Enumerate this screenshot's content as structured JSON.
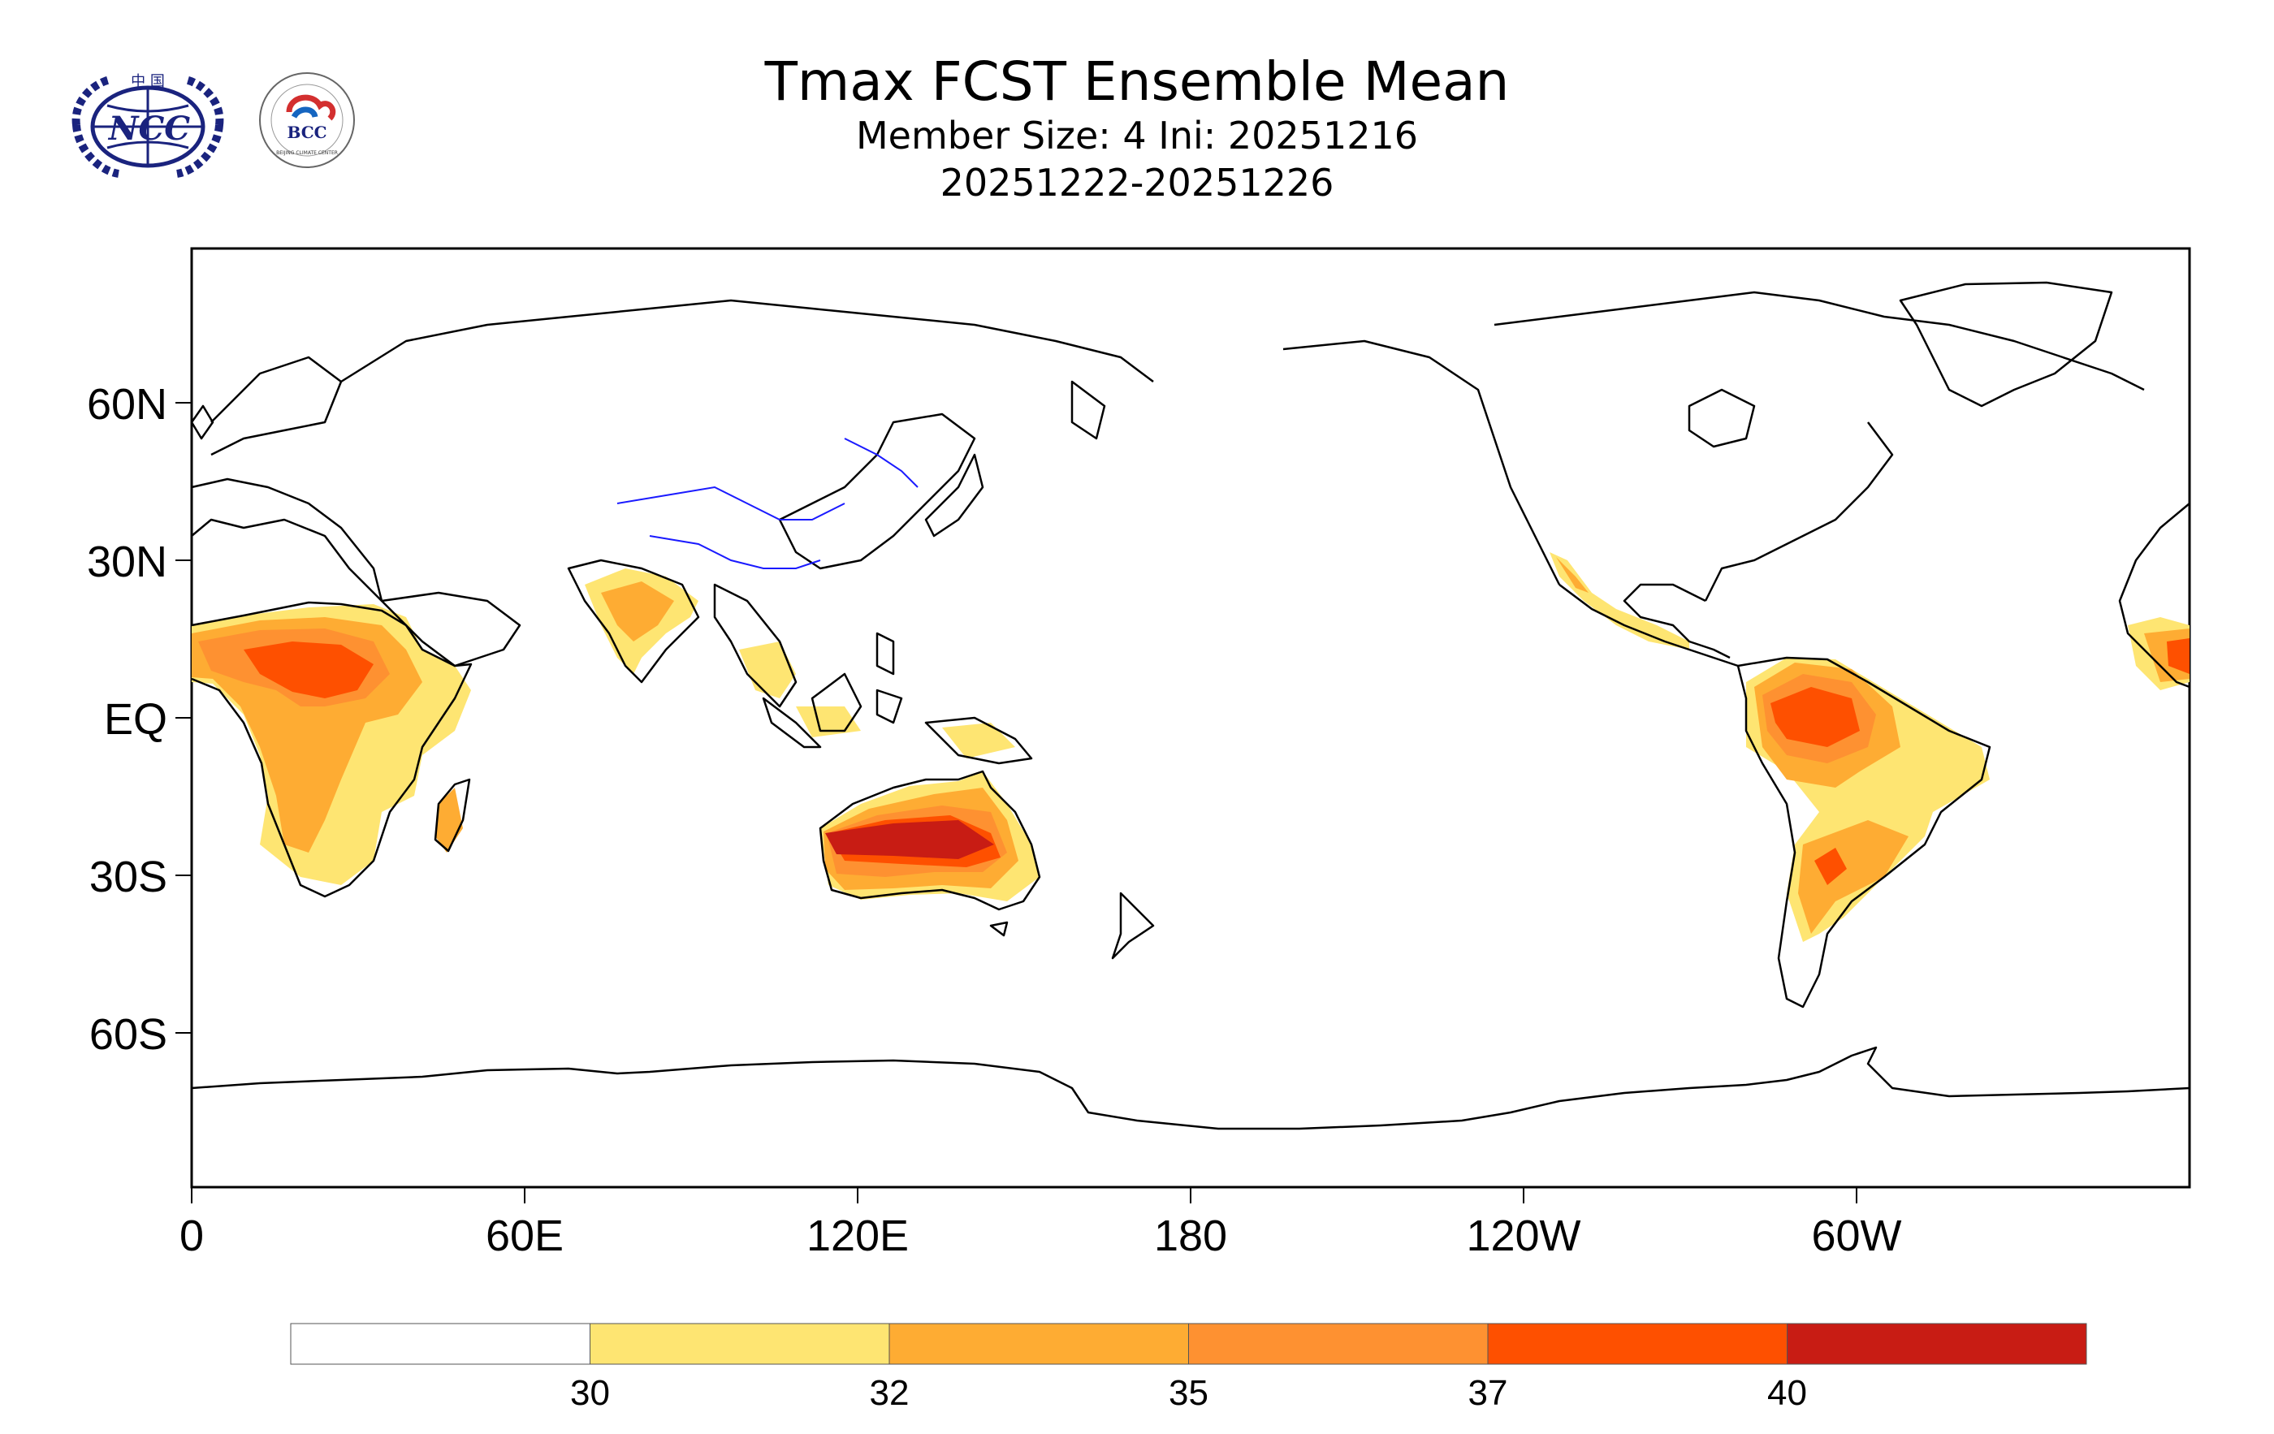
{
  "header": {
    "title": "Tmax FCST Ensemble Mean",
    "subtitle": "Member Size: 4  Ini: 20251216",
    "period": "20251222-20251226"
  },
  "logos": {
    "ncc": {
      "text": "NCC",
      "top_text": "中 国"
    },
    "bcc": {
      "text": "BCC",
      "ring_text": "BEIJING CLIMATE CENTER"
    }
  },
  "map": {
    "projection": "cylindrical equidistant, centered 180",
    "lat_labels": [
      "60N",
      "30N",
      "EQ",
      "30S",
      "60S"
    ],
    "lon_labels": [
      "0",
      "60E",
      "120E",
      "180",
      "120W",
      "60W"
    ]
  },
  "colorbar": {
    "labels": [
      "30",
      "32",
      "35",
      "37",
      "40"
    ],
    "colors": [
      "#ffffff",
      "#fee572",
      "#feac33",
      "#fe9131",
      "#fe5000",
      "#c81c14"
    ]
  },
  "palette": {
    "c30": "#fee572",
    "c32": "#feac33",
    "c35": "#fe9131",
    "c37": "#fe5000",
    "c40": "#c81c14",
    "coast": "#000000",
    "china_rivers": "#1a1aff"
  }
}
